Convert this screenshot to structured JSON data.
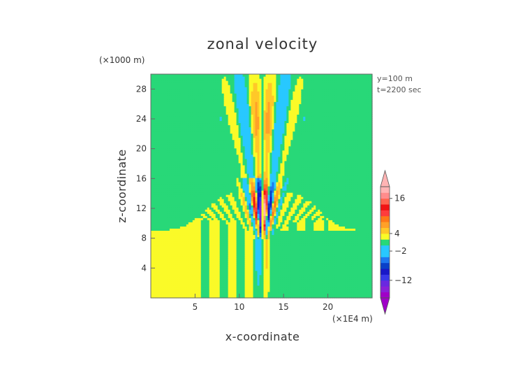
{
  "chart_data": {
    "type": "heatmap",
    "title": "zonal velocity",
    "xlabel": "x-coordinate",
    "ylabel": "z-coordinate",
    "x_unit": "(×1E4 m)",
    "y_unit": "(×1000 m)",
    "annotations": [
      "y=100 m",
      "t=2200 sec"
    ],
    "xlim": [
      0,
      25
    ],
    "ylim": [
      0,
      30
    ],
    "xticks": [
      5,
      10,
      15,
      20
    ],
    "yticks": [
      4,
      8,
      12,
      16,
      20,
      24,
      28
    ],
    "grid": false,
    "colorbar": {
      "levels": [
        -18,
        -16,
        -14,
        -12,
        -10,
        -8,
        -6,
        -4,
        -2,
        0,
        2,
        4,
        6,
        8,
        10,
        12,
        14,
        16,
        18,
        20
      ],
      "colors": [
        "#a000c8",
        "#8a20d8",
        "#6a28e0",
        "#3838e8",
        "#1818c8",
        "#0a40c8",
        "#1e78f0",
        "#28c8ff",
        "#28c8ff",
        "#28d878",
        "#fafa28",
        "#ffc828",
        "#ffa028",
        "#ff7818",
        "#ff3c3c",
        "#f01414",
        "#ff6450",
        "#ff8c8c",
        "#ffb4b4"
      ],
      "tick_labels": [
        "16",
        "4",
        "−2",
        "−12"
      ],
      "tick_values": [
        16,
        4,
        -2,
        -12
      ],
      "extend": "both"
    }
  }
}
